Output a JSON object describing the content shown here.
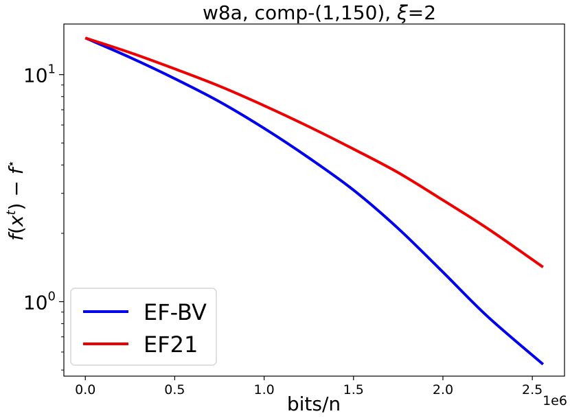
{
  "chart_data": {
    "type": "line",
    "title": "w8a, comp-(1,150), ξ=2",
    "title_parts": {
      "main": "w8a, comp-(1,150), ",
      "symbol": "ξ",
      "rest": "=2"
    },
    "xlabel": "bits/n",
    "ylabel_parts": {
      "f": "f",
      "x": "x",
      "t": "t",
      "minus": " − ",
      "fstar": "f",
      "star": "⋆"
    },
    "x_offset_label": "1e6",
    "x_scale_factor": 1000000,
    "xlim": [
      -120000,
      2680000
    ],
    "ylim": [
      0.47,
      16.7
    ],
    "y_scale": "log",
    "x_ticks": [
      {
        "value": 0,
        "label": "0.0"
      },
      {
        "value": 500000,
        "label": "0.5"
      },
      {
        "value": 1000000,
        "label": "1.0"
      },
      {
        "value": 1500000,
        "label": "1.5"
      },
      {
        "value": 2000000,
        "label": "2.0"
      },
      {
        "value": 2500000,
        "label": "2.5"
      }
    ],
    "y_ticks": [
      {
        "value": 1,
        "base": "10",
        "exp": "0"
      },
      {
        "value": 10,
        "base": "10",
        "exp": "1"
      }
    ],
    "y_minor_ticks": [
      0.5,
      0.6,
      0.7,
      0.8,
      0.9,
      2,
      3,
      4,
      5,
      6,
      7,
      8,
      9
    ],
    "grid": false,
    "legend_position": "lower-left",
    "series": [
      {
        "name": "EF-BV",
        "color": "#0000ee",
        "x": [
          0,
          250000,
          500000,
          750000,
          1000000,
          1250000,
          1500000,
          1750000,
          2000000,
          2250000,
          2560000
        ],
        "y": [
          14.5,
          11.9,
          9.6,
          7.6,
          5.8,
          4.3,
          3.1,
          2.1,
          1.35,
          0.86,
          0.53
        ]
      },
      {
        "name": "EF21",
        "color": "#ee0000",
        "x": [
          0,
          250000,
          500000,
          750000,
          1000000,
          1250000,
          1500000,
          1750000,
          2000000,
          2250000,
          2560000
        ],
        "y": [
          14.5,
          12.5,
          10.6,
          8.9,
          7.3,
          5.9,
          4.7,
          3.7,
          2.8,
          2.1,
          1.42
        ]
      }
    ]
  }
}
